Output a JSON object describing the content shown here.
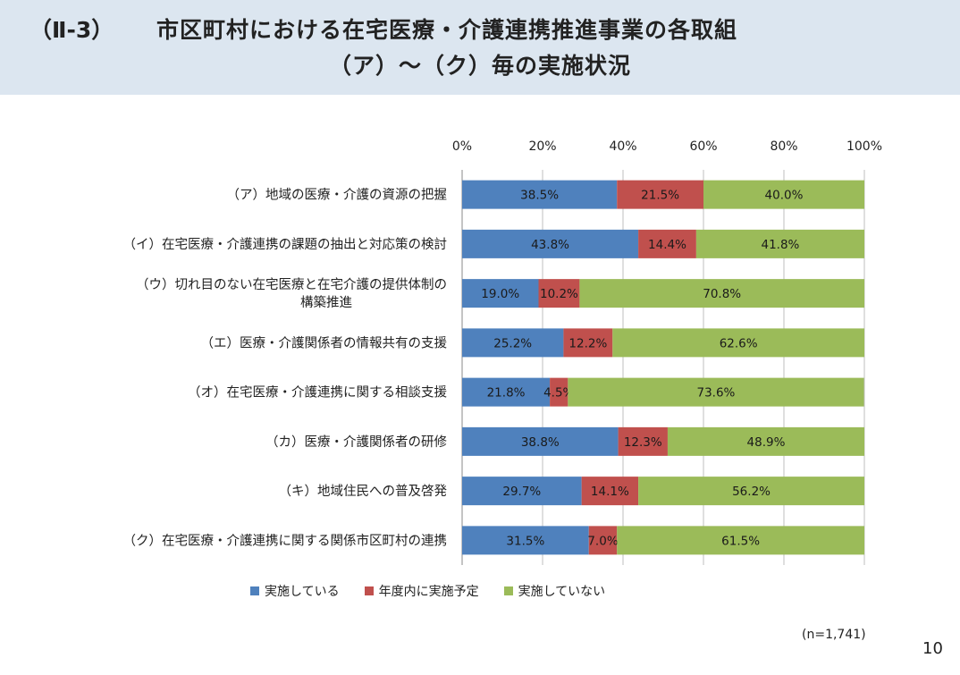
{
  "header": {
    "number": "（Ⅱ-3）",
    "title_line1": "市区町村における在宅医療・介護連携推進事業の各取組",
    "title_line2": "（ア）～（ク）毎の実施状況"
  },
  "chart_data": {
    "type": "bar",
    "orientation": "horizontal-stacked-100",
    "xticks": [
      "0%",
      "20%",
      "40%",
      "60%",
      "80%",
      "100%"
    ],
    "xlim": [
      0,
      100
    ],
    "grid": true,
    "legend_position": "bottom",
    "categories": [
      [
        "（ア）地域の医療・介護の資源の把握"
      ],
      [
        "（イ）在宅医療・介護連携の課題の抽出と対応策の検討"
      ],
      [
        "（ウ）切れ目のない在宅医療と在宅介護の提供体制の",
        "構築推進"
      ],
      [
        "（エ）医療・介護関係者の情報共有の支援"
      ],
      [
        "（オ）在宅医療・介護連携に関する相談支援"
      ],
      [
        "（カ）医療・介護関係者の研修"
      ],
      [
        "（キ）地域住民への普及啓発"
      ],
      [
        "（ク）在宅医療・介護連携に関する関係市区町村の連携"
      ]
    ],
    "series": [
      {
        "name": "実施している",
        "color": "#4f81bd",
        "values": [
          38.5,
          43.8,
          19.0,
          25.2,
          21.8,
          38.8,
          29.7,
          31.5
        ],
        "labels": [
          "38.5%",
          "43.8%",
          "19.0%",
          "25.2%",
          "21.8%",
          "38.8%",
          "29.7%",
          "31.5%"
        ]
      },
      {
        "name": "年度内に実施予定",
        "color": "#c0504d",
        "values": [
          21.5,
          14.4,
          10.2,
          12.2,
          4.5,
          12.3,
          14.1,
          7.0
        ],
        "labels": [
          "21.5%",
          "14.4%",
          "10.2%",
          "12.2%",
          "4.5%",
          "12.3%",
          "14.1%",
          "7.0%"
        ]
      },
      {
        "name": "実施していない",
        "color": "#9bbb59",
        "values": [
          40.0,
          41.8,
          70.8,
          62.6,
          73.6,
          48.9,
          56.2,
          61.5
        ],
        "labels": [
          "40.0%",
          "41.8%",
          "70.8%",
          "62.6%",
          "73.6%",
          "48.9%",
          "56.2%",
          "61.5%"
        ]
      }
    ]
  },
  "note": "(n=1,741)",
  "page_number": "10"
}
